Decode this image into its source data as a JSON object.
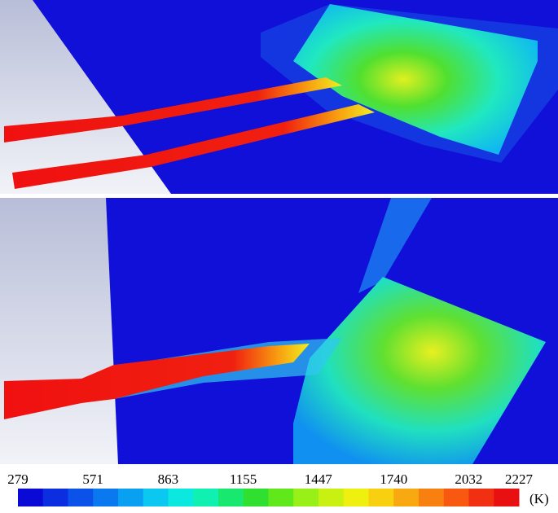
{
  "colorbar": {
    "ticks": [
      279,
      571,
      863,
      1155,
      1447,
      1740,
      2032,
      2227
    ],
    "unit": "(K)",
    "colors": [
      "#0a0ad6",
      "#0a2ee0",
      "#0a52e8",
      "#0a78ef",
      "#0aa0f2",
      "#0ac8f0",
      "#0ae8e0",
      "#10f0b0",
      "#18e870",
      "#30e030",
      "#60e81a",
      "#98f018",
      "#c8f010",
      "#f0f010",
      "#f8d010",
      "#f8a810",
      "#f88010",
      "#f85810",
      "#f03010",
      "#e81010"
    ]
  }
}
